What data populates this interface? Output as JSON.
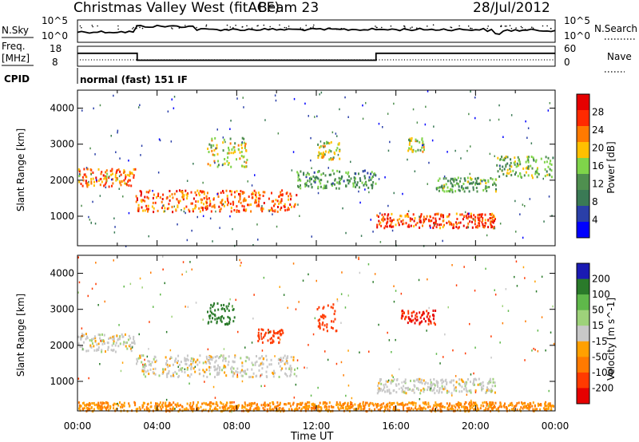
{
  "header": {
    "title": "Christmas Valley West (fitACF)",
    "beam": "Beam 23",
    "date": "28/Jul/2012"
  },
  "sky_panel": {
    "left_label": "N.Sky",
    "right_label": "N.Search",
    "left_ticks": [
      "10^5",
      "10^0"
    ],
    "right_ticks": [
      "10^5",
      "10^0"
    ]
  },
  "freq_panel": {
    "left_label_1": "Freq.",
    "left_label_2": "[MHz]",
    "right_label": "Nave",
    "left_ticks": [
      "18",
      "8"
    ],
    "right_ticks": [
      "60",
      "0"
    ],
    "freq_steps_utc_hours": [
      0,
      3,
      15,
      24
    ],
    "freq_values_mhz": [
      14.5,
      11,
      14.5
    ]
  },
  "cpid": {
    "label": "CPID",
    "text": "normal (fast) 151 IF"
  },
  "colors": {
    "power_scale": [
      "#0000ff",
      "#2a3fa8",
      "#3a7a55",
      "#4f8f4f",
      "#7fd44a",
      "#ffc000",
      "#ff7a00",
      "#ff2a00",
      "#e60000"
    ],
    "velocity_scale": [
      "#1a1ab3",
      "#2a7a2a",
      "#5fb84a",
      "#9ed27a",
      "#c8c8c8",
      "#ffa000",
      "#ff7a00",
      "#ff3a00",
      "#e60000"
    ]
  },
  "chart_data": [
    {
      "type": "heatmap",
      "title": "Power",
      "xlabel": "Time UT",
      "ylabel": "Slant Range [km]",
      "x_ticks": [
        "00:00",
        "04:00",
        "08:00",
        "12:00",
        "16:00",
        "20:00",
        "00:00"
      ],
      "xlim_hours": [
        0,
        24
      ],
      "y_ticks": [
        1000,
        2000,
        3000,
        4000
      ],
      "ylim": [
        180,
        4500
      ],
      "colorbar_label": "Power [dB]",
      "colorbar_ticks": [
        4,
        8,
        12,
        16,
        20,
        24,
        28
      ],
      "bands": [
        {
          "t0": 0.0,
          "t1": 2.9,
          "r0": 1850,
          "r1": 2350,
          "level": 0.75
        },
        {
          "t0": 2.9,
          "t1": 11.0,
          "r0": 1150,
          "r1": 1750,
          "level": 0.8
        },
        {
          "t0": 11.0,
          "t1": 15.0,
          "r0": 1800,
          "r1": 2300,
          "level": 0.35
        },
        {
          "t0": 15.0,
          "t1": 21.0,
          "r0": 700,
          "r1": 1100,
          "level": 0.85
        },
        {
          "t0": 6.5,
          "t1": 8.5,
          "r0": 2400,
          "r1": 3200,
          "level": 0.55
        },
        {
          "t0": 12.0,
          "t1": 13.2,
          "r0": 2600,
          "r1": 3100,
          "level": 0.55
        },
        {
          "t0": 16.5,
          "t1": 17.4,
          "r0": 2800,
          "r1": 3200,
          "level": 0.55
        },
        {
          "t0": 18.0,
          "t1": 21.0,
          "r0": 1700,
          "r1": 2100,
          "level": 0.4
        },
        {
          "t0": 21.0,
          "t1": 24.0,
          "r0": 2100,
          "r1": 2700,
          "level": 0.45
        }
      ]
    },
    {
      "type": "heatmap",
      "title": "Velocity",
      "xlabel": "Time UT",
      "ylabel": "Slant Range [km]",
      "x_ticks": [
        "00:00",
        "04:00",
        "08:00",
        "12:00",
        "16:00",
        "20:00",
        "00:00"
      ],
      "xlim_hours": [
        0,
        24
      ],
      "y_ticks": [
        1000,
        2000,
        3000,
        4000
      ],
      "ylim": [
        180,
        4500
      ],
      "colorbar_label": "Velocity [m s^-1]",
      "colorbar_ticks": [
        200,
        100,
        50,
        15,
        -15,
        -50,
        -100,
        -200
      ],
      "bands": [
        {
          "t0": 0.0,
          "t1": 2.9,
          "r0": 1850,
          "r1": 2350,
          "velocity": 0
        },
        {
          "t0": 2.9,
          "t1": 11.0,
          "r0": 1150,
          "r1": 1750,
          "velocity": 0
        },
        {
          "t0": 15.0,
          "t1": 21.0,
          "r0": 700,
          "r1": 1100,
          "velocity": 0
        },
        {
          "t0": 6.5,
          "t1": 8.0,
          "r0": 2600,
          "r1": 3200,
          "velocity": 150
        },
        {
          "t0": 9.0,
          "t1": 10.3,
          "r0": 2100,
          "r1": 2500,
          "velocity": -150
        },
        {
          "t0": 12.0,
          "t1": 13.0,
          "r0": 2400,
          "r1": 3200,
          "velocity": -180
        },
        {
          "t0": 16.2,
          "t1": 18.0,
          "r0": 2600,
          "r1": 3000,
          "velocity": -200
        },
        {
          "t0": 0.0,
          "t1": 24.0,
          "r0": 200,
          "r1": 450,
          "velocity": -50
        }
      ]
    }
  ]
}
